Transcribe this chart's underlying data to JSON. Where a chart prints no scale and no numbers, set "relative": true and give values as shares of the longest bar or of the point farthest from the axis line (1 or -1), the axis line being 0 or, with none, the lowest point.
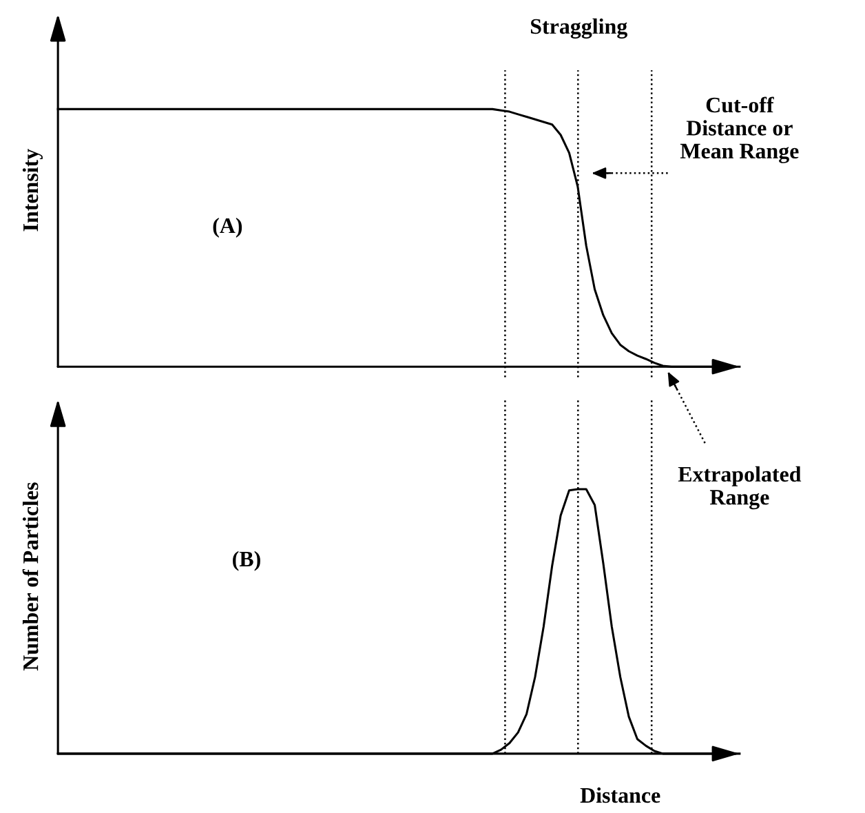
{
  "chart_data": [
    {
      "type": "line",
      "ylabel": "Intensity",
      "relative": true,
      "line_style": "solid",
      "categories": [
        null,
        null,
        null,
        null,
        null,
        null,
        null,
        null,
        null,
        null,
        null,
        null,
        null,
        null,
        null,
        null,
        null,
        null,
        null,
        null,
        null,
        null,
        null,
        null,
        null,
        null,
        null,
        null,
        null,
        null,
        null,
        null,
        null,
        null,
        null,
        null,
        null,
        null,
        null,
        null,
        null,
        null,
        null,
        null,
        null,
        null,
        null,
        null,
        null,
        null,
        null,
        null,
        null,
        null,
        null,
        null,
        null,
        null,
        null,
        null,
        null,
        null,
        null,
        null,
        null,
        null,
        null,
        null,
        null,
        null,
        null,
        null,
        null,
        null,
        null,
        null,
        null,
        null,
        null,
        null,
        null
      ],
      "series": [
        {
          "color": "#000000",
          "values": [
            1,
            1,
            1,
            1,
            1,
            1,
            1,
            1,
            1,
            1,
            1,
            1,
            1,
            1,
            1,
            1,
            1,
            1,
            1,
            1,
            1,
            1,
            1,
            1,
            1,
            1,
            1,
            1,
            1,
            1,
            1,
            1,
            1,
            1,
            1,
            1,
            1,
            1,
            1,
            1,
            1,
            1,
            1,
            1,
            1,
            1,
            1,
            1,
            1,
            1,
            1,
            1,
            0.995,
            0.99,
            0.98,
            0.97,
            0.96,
            0.95,
            0.94,
            0.9,
            0.83,
            0.7,
            0.47,
            0.3,
            0.2,
            0.13,
            0.085,
            0.06,
            0.043,
            0.03,
            0.015,
            0.003,
            0,
            0,
            0,
            0,
            0,
            0,
            0,
            0,
            0
          ]
        }
      ],
      "annotations": [
        "Straggling",
        "(A)",
        "Cut-off\nDistance or\nMean Range",
        "Extrapolated\nRange"
      ]
    },
    {
      "type": "line",
      "ylabel": "Number of Particles",
      "xlabel": "Distance",
      "relative": true,
      "line_style": "solid",
      "categories": [
        null,
        null,
        null,
        null,
        null,
        null,
        null,
        null,
        null,
        null,
        null,
        null,
        null,
        null,
        null,
        null,
        null,
        null,
        null,
        null,
        null,
        null,
        null,
        null,
        null,
        null,
        null,
        null,
        null,
        null,
        null,
        null,
        null,
        null,
        null,
        null,
        null,
        null,
        null,
        null,
        null,
        null,
        null,
        null,
        null,
        null,
        null,
        null,
        null,
        null,
        null,
        null,
        null,
        null,
        null,
        null,
        null,
        null,
        null,
        null,
        null,
        null,
        null,
        null,
        null,
        null,
        null,
        null,
        null,
        null,
        null,
        null,
        null,
        null,
        null,
        null,
        null,
        null,
        null,
        null,
        null
      ],
      "series": [
        {
          "color": "#000000",
          "values": [
            0,
            0,
            0,
            0,
            0,
            0,
            0,
            0,
            0,
            0,
            0,
            0,
            0,
            0,
            0,
            0,
            0,
            0,
            0,
            0,
            0,
            0,
            0,
            0,
            0,
            0,
            0,
            0,
            0,
            0,
            0,
            0,
            0,
            0,
            0,
            0,
            0,
            0,
            0,
            0,
            0,
            0,
            0,
            0,
            0,
            0,
            0,
            0,
            0,
            0,
            0,
            0,
            0.015,
            0.04,
            0.08,
            0.15,
            0.29,
            0.48,
            0.71,
            0.9,
            0.995,
            1,
            1,
            0.94,
            0.72,
            0.48,
            0.29,
            0.14,
            0.055,
            0.03,
            0.01,
            0,
            0,
            0,
            0,
            0,
            0,
            0,
            0,
            0,
            0
          ]
        }
      ],
      "annotations": [
        "(B)"
      ]
    }
  ]
}
